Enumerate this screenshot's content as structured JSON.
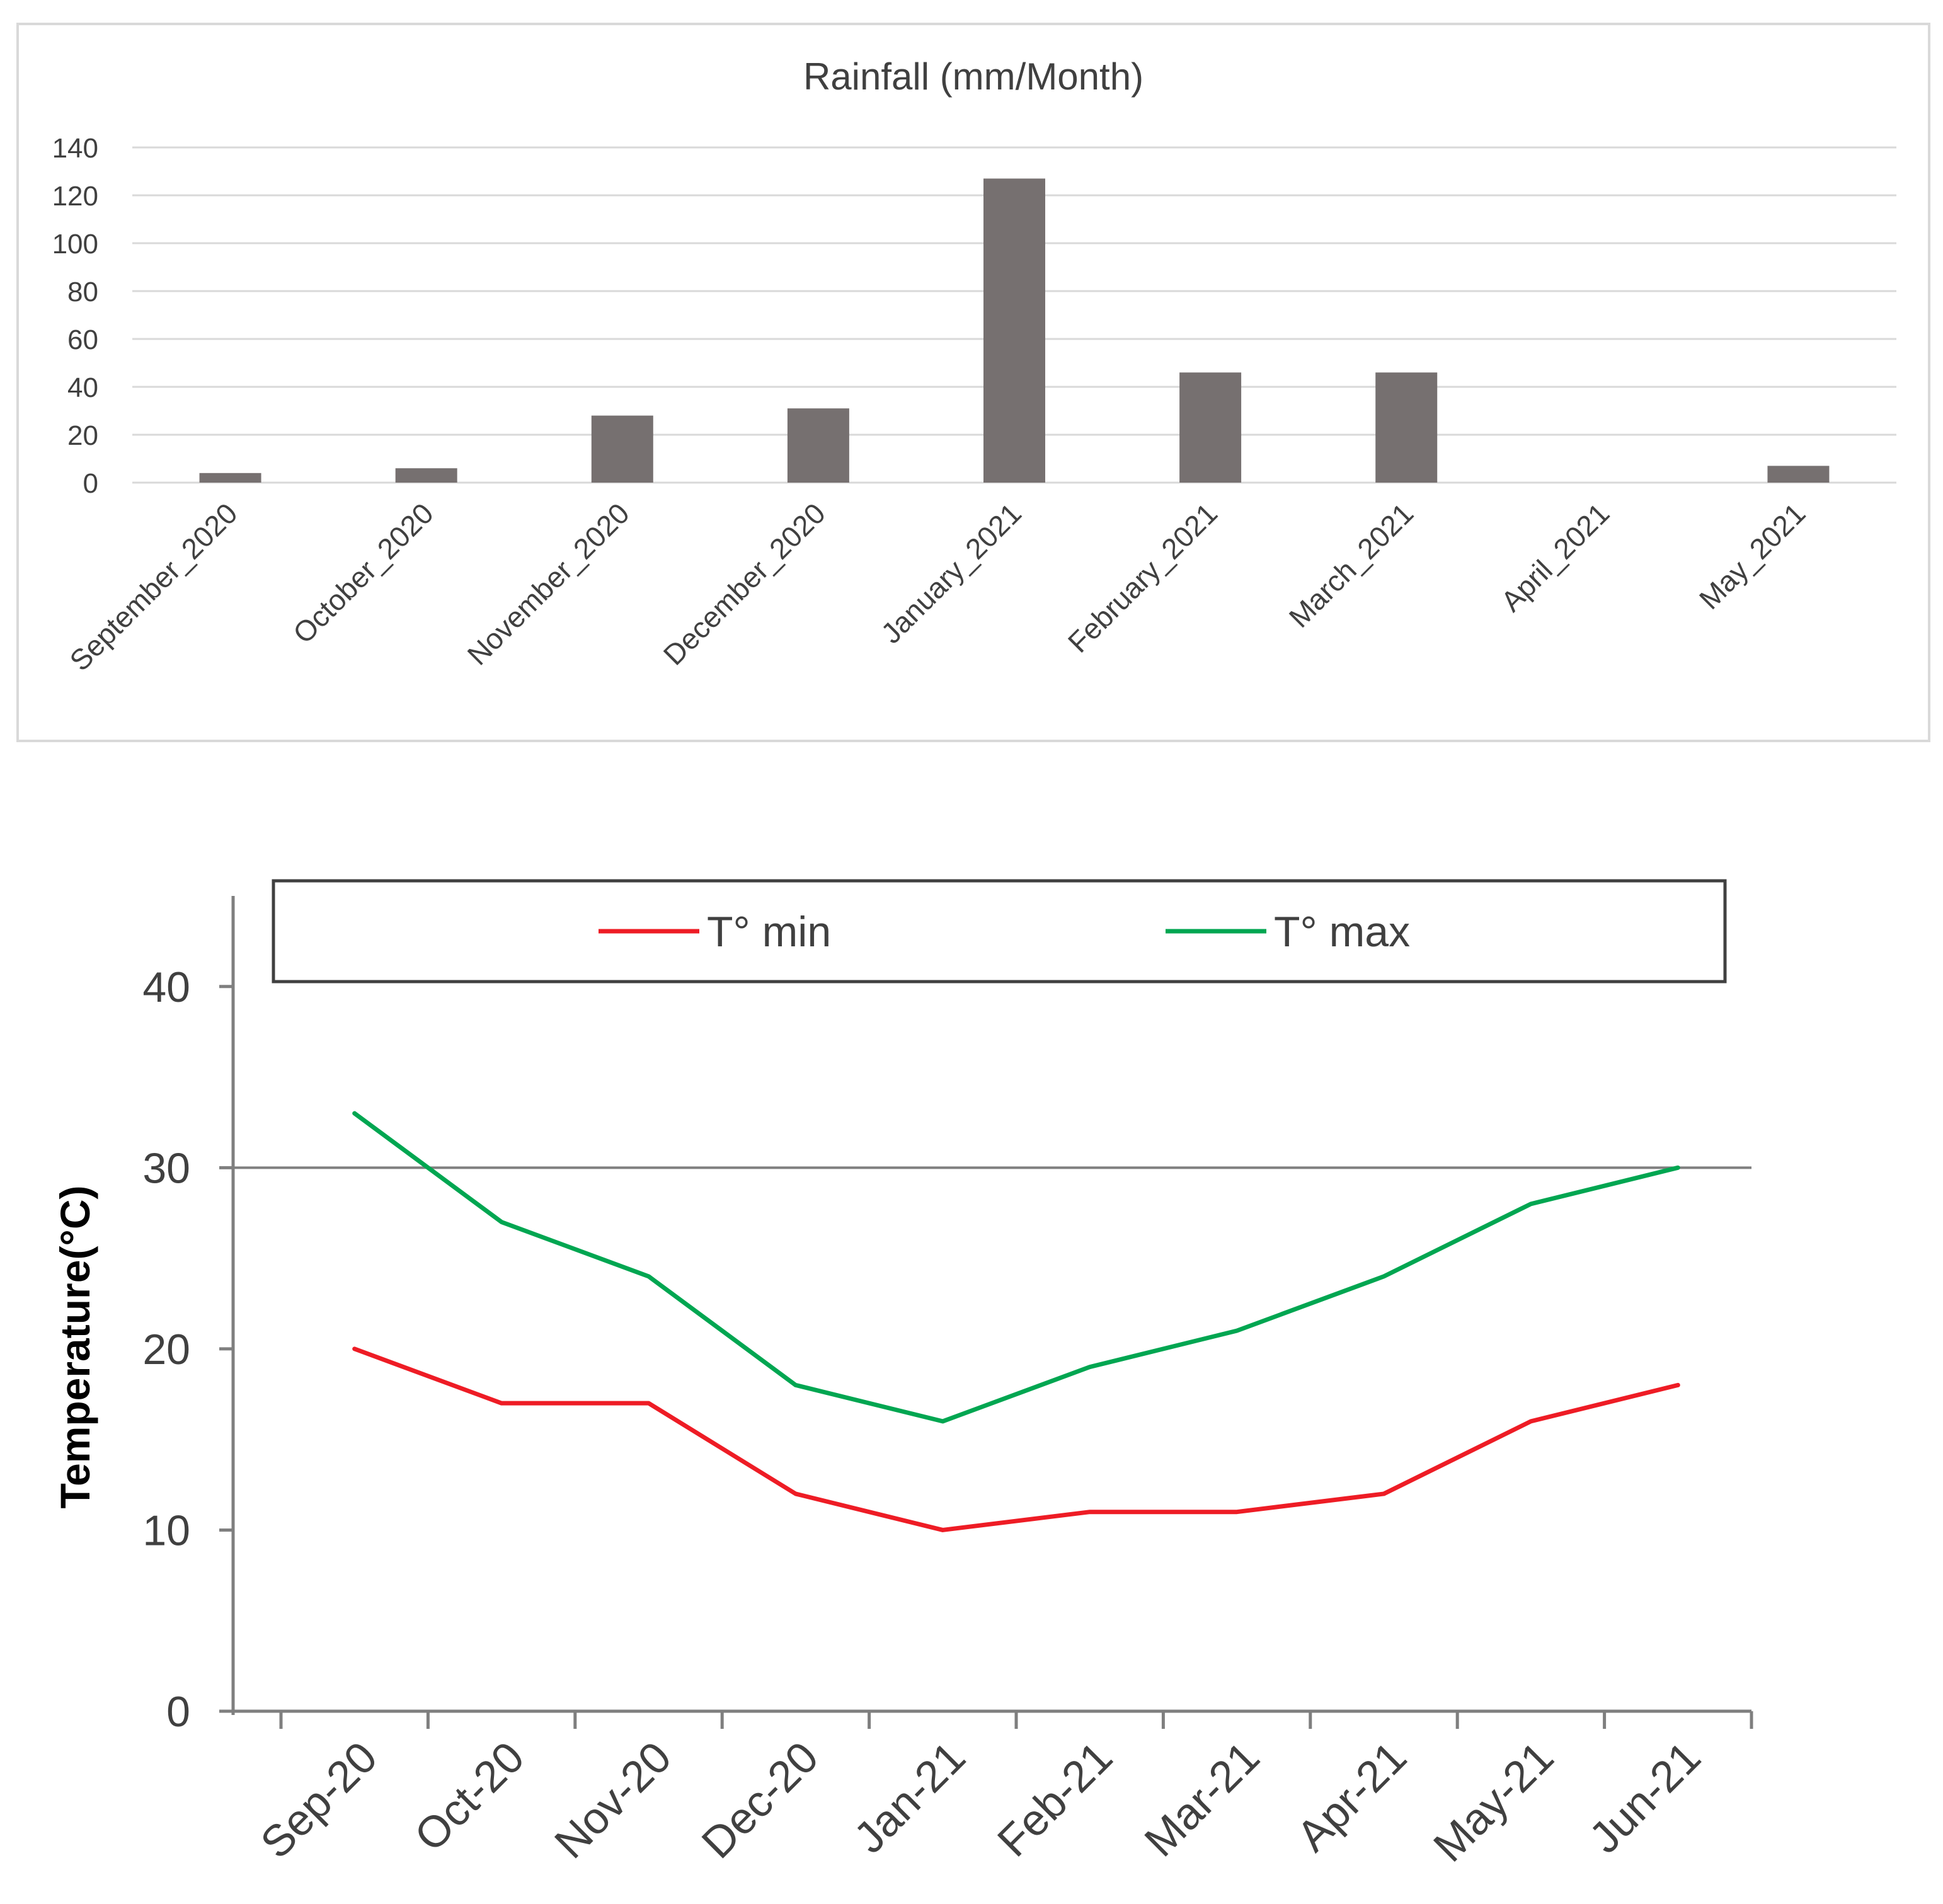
{
  "chart_data": [
    {
      "type": "bar",
      "title": "Rainfall (mm/Month)",
      "xlabel": "",
      "ylabel": "",
      "ylim": [
        0,
        140
      ],
      "yticks": [
        0,
        20,
        40,
        60,
        80,
        100,
        120,
        140
      ],
      "ytick_labels": [
        "0",
        "20",
        "40",
        "60",
        "80",
        "100",
        "120",
        "140"
      ],
      "grid": true,
      "categories": [
        "September_2020",
        "October_2020",
        "November_2020",
        "December_2020",
        "January_2021",
        "February_2021",
        "March_2021",
        "April_2021",
        "May_2021"
      ],
      "values": [
        4,
        6,
        28,
        31,
        127,
        46,
        46,
        0,
        7
      ],
      "colors": {
        "bar": "#767070",
        "grid": "#d9d9d9",
        "frame": "#d9d9d9",
        "text": "#404040"
      }
    },
    {
      "type": "line",
      "title": "",
      "xlabel": "",
      "ylabel": "Temperature(°C)",
      "ylim": [
        0,
        45
      ],
      "yticks": [
        0,
        10,
        20,
        30,
        40
      ],
      "ytick_labels": [
        "0",
        "10",
        "20",
        "30",
        "40"
      ],
      "reference_line": 30,
      "categories": [
        "Sep-20",
        "Oct-20",
        "Nov-20",
        "Dec-20",
        "Jan-21",
        "Feb-21",
        "Mar-21",
        "Apr-21",
        "May-21",
        "Jun-21"
      ],
      "legend": {
        "position": "top"
      },
      "series": [
        {
          "name": "T° min",
          "color": "#ee1c25",
          "values": [
            20,
            17,
            17,
            12,
            10,
            11,
            11,
            12,
            16,
            18
          ]
        },
        {
          "name": "T° max",
          "color": "#00a651",
          "values": [
            33,
            27,
            24,
            18,
            16,
            19,
            21,
            24,
            28,
            30
          ]
        }
      ],
      "colors": {
        "axis": "#7f7f7f",
        "text": "#404040",
        "legend_border": "#404040"
      }
    }
  ]
}
